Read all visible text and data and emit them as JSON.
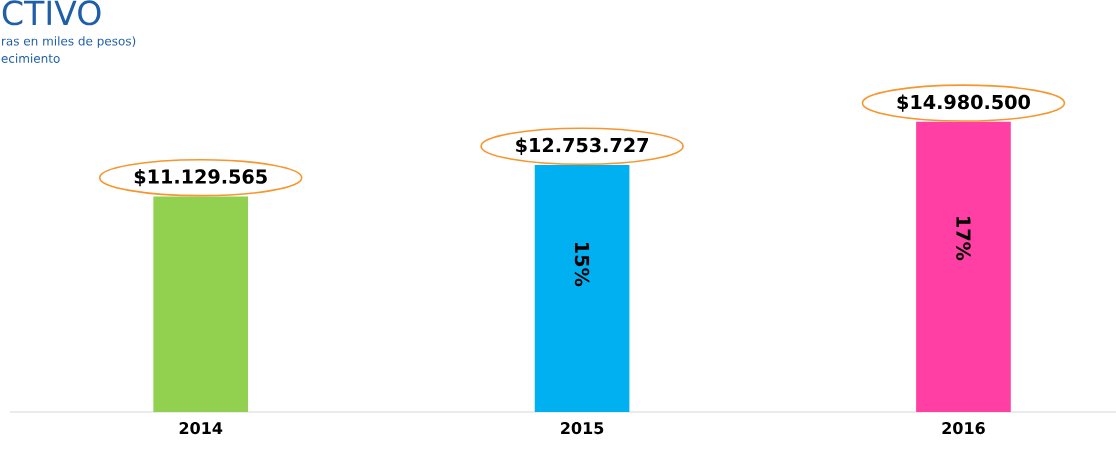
{
  "chart_data": {
    "type": "bar",
    "title": "CTIVO",
    "subtitle": "ras  en miles  de pesos)",
    "annotations": [
      "ecimiento",
      "15%",
      "17%"
    ],
    "categories": [
      "2014",
      "2015",
      "2016"
    ],
    "values": [
      11129565,
      12753727,
      14980500
    ],
    "colors": [
      "#92d050",
      "#00b0f0",
      "#ff3fa4"
    ],
    "value_labels": [
      "$11.129.565",
      "$12.753.727",
      "$14.980.500"
    ]
  }
}
